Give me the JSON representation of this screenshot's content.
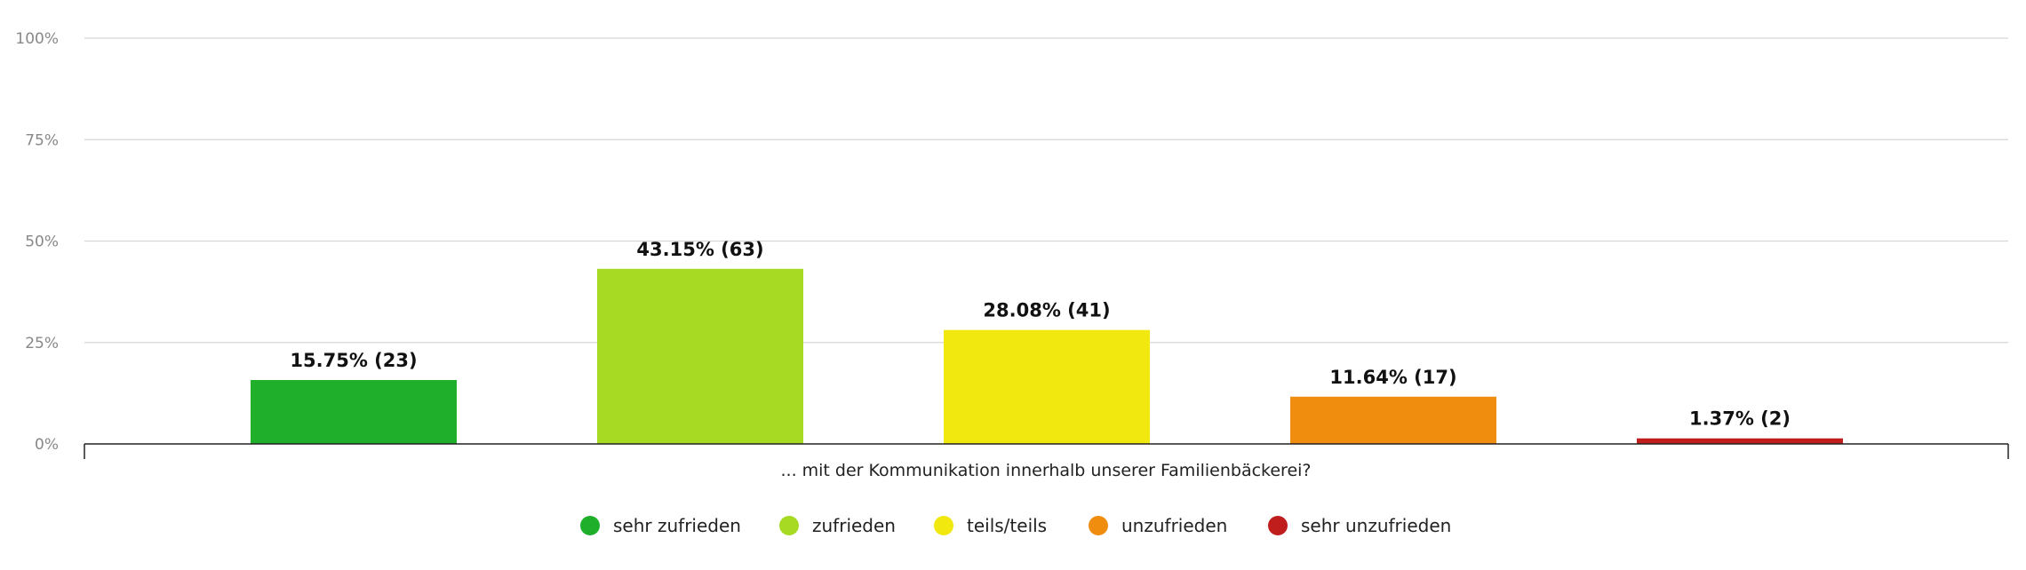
{
  "chart_data": {
    "type": "bar",
    "title": "",
    "xlabel": "",
    "ylabel": "",
    "ylim": [
      0,
      100
    ],
    "y_ticks": [
      {
        "value": 0,
        "label": "0%"
      },
      {
        "value": 25,
        "label": "25%"
      },
      {
        "value": 50,
        "label": "50%"
      },
      {
        "value": 75,
        "label": "75%"
      },
      {
        "value": 100,
        "label": "100%"
      }
    ],
    "grid": true,
    "legend_position": "bottom-center",
    "categories": [
      "... mit der Kommunikation innerhalb unserer Familienbäckerei?"
    ],
    "series": [
      {
        "name": "sehr zufrieden",
        "values": [
          15.75
        ],
        "count": 23,
        "label": "15.75% (23)",
        "color": "#1faf2b"
      },
      {
        "name": "zufrieden",
        "values": [
          43.15
        ],
        "count": 63,
        "label": "43.15% (63)",
        "color": "#a7da22"
      },
      {
        "name": "teils/teils",
        "values": [
          28.08
        ],
        "count": 41,
        "label": "28.08% (41)",
        "color": "#f0e80f"
      },
      {
        "name": "unzufrieden",
        "values": [
          11.64
        ],
        "count": 17,
        "label": "11.64% (17)",
        "color": "#f18d0e"
      },
      {
        "name": "sehr unzufrieden",
        "values": [
          1.37
        ],
        "count": 2,
        "label": "1.37% (2)",
        "color": "#c01d1d"
      }
    ]
  }
}
